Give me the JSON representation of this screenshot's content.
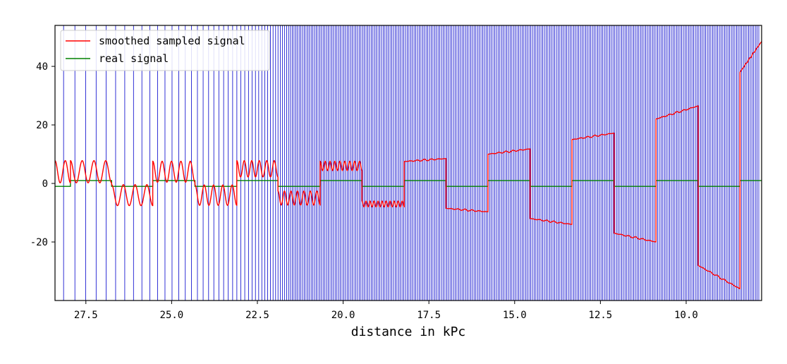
{
  "chart_data": {
    "type": "line",
    "xlabel": "distance in kPc",
    "ylabel": "",
    "title": "",
    "x_axis_inverted": true,
    "xlim": [
      28.4,
      7.8
    ],
    "ylim": [
      -40,
      54
    ],
    "x_ticks": [
      27.5,
      25.0,
      22.5,
      20.0,
      17.5,
      15.0,
      12.5,
      10.0
    ],
    "x_tick_labels": [
      "27.5",
      "25.0",
      "22.5",
      "20.0",
      "17.5",
      "15.0",
      "12.5",
      "10.0"
    ],
    "y_ticks": [
      40,
      20,
      0,
      -20
    ],
    "y_tick_labels": [
      "40",
      "20",
      "0",
      "-20"
    ],
    "grid": false,
    "legend_position": "top-left",
    "legend": [
      {
        "label": "smoothed sampled signal",
        "color": "#ff0000"
      },
      {
        "label": "real signal",
        "color": "#008000"
      }
    ],
    "sample_lines_color": "#0000cc",
    "real_signal": {
      "name": "real signal",
      "color": "#008000",
      "segments": [
        {
          "x0": 28.4,
          "x1": 27.95,
          "y": -1
        },
        {
          "x0": 27.95,
          "x1": 26.75,
          "y": 1
        },
        {
          "x0": 26.75,
          "x1": 25.55,
          "y": -1
        },
        {
          "x0": 25.55,
          "x1": 24.32,
          "y": 1
        },
        {
          "x0": 24.32,
          "x1": 23.1,
          "y": -1
        },
        {
          "x0": 23.1,
          "x1": 21.9,
          "y": 1
        },
        {
          "x0": 21.9,
          "x1": 20.67,
          "y": -1
        },
        {
          "x0": 20.67,
          "x1": 19.45,
          "y": 1
        },
        {
          "x0": 19.45,
          "x1": 18.22,
          "y": -1
        },
        {
          "x0": 18.22,
          "x1": 17.0,
          "y": 1
        },
        {
          "x0": 17.0,
          "x1": 15.78,
          "y": -1
        },
        {
          "x0": 15.78,
          "x1": 14.55,
          "y": 1
        },
        {
          "x0": 14.55,
          "x1": 13.33,
          "y": -1
        },
        {
          "x0": 13.33,
          "x1": 12.1,
          "y": 1
        },
        {
          "x0": 12.1,
          "x1": 10.88,
          "y": -1
        },
        {
          "x0": 10.88,
          "x1": 9.65,
          "y": 1
        },
        {
          "x0": 9.65,
          "x1": 8.43,
          "y": -1
        },
        {
          "x0": 8.43,
          "x1": 7.8,
          "y": 1
        }
      ]
    },
    "smoothed_signal": {
      "name": "smoothed sampled signal",
      "color": "#ff0000",
      "segments": [
        {
          "x0": 28.4,
          "x1": 27.95,
          "type": "osc",
          "mid": 4,
          "amp": 3.8,
          "cycles": 1.5
        },
        {
          "x0": 27.95,
          "x1": 26.75,
          "type": "osc",
          "mid": 4,
          "amp": 3.8,
          "cycles": 3.5
        },
        {
          "x0": 26.75,
          "x1": 25.55,
          "type": "osc",
          "mid": -4,
          "amp": 3.6,
          "cycles": 3.5
        },
        {
          "x0": 25.55,
          "x1": 24.32,
          "type": "osc",
          "mid": 4,
          "amp": 3.6,
          "cycles": 4.5
        },
        {
          "x0": 24.32,
          "x1": 23.1,
          "type": "osc",
          "mid": -4,
          "amp": 3.5,
          "cycles": 4.5
        },
        {
          "x0": 23.1,
          "x1": 21.9,
          "type": "osc",
          "mid": 5,
          "amp": 2.8,
          "cycles": 5.5
        },
        {
          "x0": 21.9,
          "x1": 20.67,
          "type": "osc",
          "mid": -5,
          "amp": 2.4,
          "cycles": 6.5
        },
        {
          "x0": 20.67,
          "x1": 19.45,
          "type": "osc",
          "mid": 6,
          "amp": 1.6,
          "cycles": 8.5
        },
        {
          "x0": 19.45,
          "x1": 18.22,
          "type": "osc",
          "mid": -7,
          "amp": 1.0,
          "cycles": 10.5
        },
        {
          "x0": 18.22,
          "x1": 17.0,
          "type": "lin",
          "y0": 7.5,
          "y1": 8.5
        },
        {
          "x0": 17.0,
          "x1": 15.78,
          "type": "lin",
          "y0": -8.5,
          "y1": -9.7
        },
        {
          "x0": 15.78,
          "x1": 14.55,
          "type": "lin",
          "y0": 10,
          "y1": 11.8
        },
        {
          "x0": 14.55,
          "x1": 13.33,
          "type": "lin",
          "y0": -12,
          "y1": -14
        },
        {
          "x0": 13.33,
          "x1": 12.1,
          "type": "lin",
          "y0": 15,
          "y1": 17.2
        },
        {
          "x0": 12.1,
          "x1": 10.88,
          "type": "lin",
          "y0": -17,
          "y1": -20
        },
        {
          "x0": 10.88,
          "x1": 9.65,
          "type": "lin",
          "y0": 22,
          "y1": 26.5
        },
        {
          "x0": 9.65,
          "x1": 8.43,
          "type": "lin",
          "y0": -28,
          "y1": -36
        },
        {
          "x0": 8.43,
          "x1": 7.8,
          "type": "lin",
          "y0": 38,
          "y1": 48.5
        }
      ]
    },
    "sample_lines": {
      "start_x": 28.15,
      "end_x": 7.85,
      "initial_step": 0.33,
      "step_decay": 0.958,
      "min_step": 0.05
    }
  }
}
